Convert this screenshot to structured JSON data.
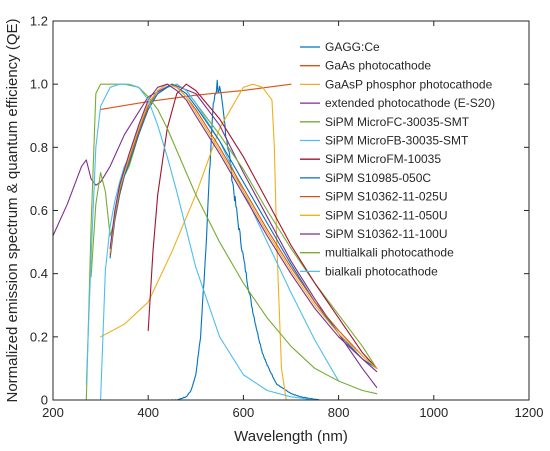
{
  "chart_data": {
    "type": "line",
    "title": "",
    "xlabel": "Wavelength (nm)",
    "ylabel": "Normalized emission spectrum & quantum efficiency (QE)",
    "xlim": [
      200,
      1200
    ],
    "ylim": [
      0,
      1.2
    ],
    "xticks": [
      "200",
      "400",
      "600",
      "800",
      "1000",
      "1200"
    ],
    "yticks": [
      "0",
      "0.2",
      "0.4",
      "0.6",
      "0.8",
      "1.0",
      "1.2"
    ],
    "grid": false,
    "legend_position": "top-right",
    "series": [
      {
        "name": "GAGG:Ce",
        "color": "#0072BD",
        "noisy": true,
        "x": [
          440,
          460,
          480,
          490,
          500,
          510,
          520,
          530,
          535,
          540,
          545,
          550,
          555,
          560,
          570,
          580,
          590,
          600,
          610,
          620,
          630,
          640,
          650,
          660,
          670,
          680,
          700,
          720,
          740,
          760
        ],
        "y": [
          0.0,
          0.0,
          0.01,
          0.03,
          0.08,
          0.2,
          0.45,
          0.75,
          0.9,
          0.97,
          1.0,
          0.98,
          0.93,
          0.88,
          0.78,
          0.66,
          0.55,
          0.45,
          0.36,
          0.28,
          0.21,
          0.15,
          0.11,
          0.08,
          0.05,
          0.04,
          0.02,
          0.01,
          0.005,
          0.0
        ]
      },
      {
        "name": "GaAs photocathode",
        "color": "#D95319",
        "x": [
          300,
          400,
          500,
          600,
          700
        ],
        "y": [
          0.92,
          0.945,
          0.965,
          0.98,
          1.0
        ]
      },
      {
        "name": "GaAsP phosphor photocathode",
        "color": "#EDB120",
        "x": [
          300,
          350,
          400,
          450,
          500,
          550,
          600,
          620,
          640,
          660,
          665,
          670,
          680,
          690
        ],
        "y": [
          0.2,
          0.24,
          0.31,
          0.47,
          0.65,
          0.86,
          0.99,
          1.0,
          0.99,
          0.95,
          0.8,
          0.5,
          0.1,
          0.0
        ]
      },
      {
        "name": "extended photocathode (E-S20)",
        "color": "#7E2F8E",
        "x": [
          200,
          230,
          260,
          270,
          280,
          290,
          300,
          320,
          350,
          400,
          450,
          500,
          550,
          600,
          650,
          700,
          750,
          800,
          850,
          880
        ],
        "y": [
          0.52,
          0.62,
          0.74,
          0.76,
          0.7,
          0.68,
          0.69,
          0.74,
          0.84,
          0.96,
          1.0,
          0.97,
          0.87,
          0.72,
          0.58,
          0.44,
          0.32,
          0.21,
          0.1,
          0.04
        ]
      },
      {
        "name": "SiPM MicroFC-30035-SMT",
        "color": "#77AC30",
        "x": [
          280,
          290,
          300,
          310,
          320,
          330,
          340,
          350,
          360,
          380,
          400,
          420,
          440,
          460,
          480,
          500,
          550,
          600,
          650,
          700,
          750,
          800,
          850,
          880
        ],
        "y": [
          0.39,
          0.62,
          0.72,
          0.66,
          0.52,
          0.57,
          0.65,
          0.71,
          0.74,
          0.84,
          0.93,
          0.97,
          0.99,
          1.0,
          0.98,
          0.94,
          0.84,
          0.73,
          0.6,
          0.48,
          0.37,
          0.27,
          0.17,
          0.1
        ]
      },
      {
        "name": "SiPM MicroFB-30035-SMT",
        "color": "#4DBEEE",
        "x": [
          300,
          310,
          320,
          330,
          340,
          350,
          360,
          380,
          400,
          420,
          440,
          460,
          480,
          500,
          550,
          600,
          650,
          700,
          750,
          800
        ],
        "y": [
          0.0,
          0.41,
          0.55,
          0.63,
          0.69,
          0.74,
          0.77,
          0.86,
          0.93,
          0.97,
          0.99,
          1.0,
          0.98,
          0.94,
          0.82,
          0.66,
          0.5,
          0.34,
          0.19,
          0.06
        ]
      },
      {
        "name": "SiPM MicroFM-10035",
        "color": "#A2142F",
        "x": [
          400,
          410,
          420,
          440,
          460,
          480,
          500,
          550,
          600,
          650,
          700,
          750,
          800,
          850,
          880
        ],
        "y": [
          0.22,
          0.47,
          0.65,
          0.86,
          0.97,
          1.0,
          0.98,
          0.89,
          0.77,
          0.63,
          0.49,
          0.37,
          0.26,
          0.15,
          0.1
        ]
      },
      {
        "name": "SiPM S10985-050C",
        "color": "#0072BD",
        "x": [
          320,
          330,
          340,
          350,
          360,
          380,
          400,
          420,
          440,
          450,
          460,
          480,
          500,
          550,
          600,
          650,
          700,
          750,
          800,
          850,
          880
        ],
        "y": [
          0.45,
          0.57,
          0.65,
          0.71,
          0.75,
          0.84,
          0.92,
          0.97,
          0.99,
          1.0,
          0.99,
          0.97,
          0.93,
          0.82,
          0.69,
          0.56,
          0.43,
          0.31,
          0.21,
          0.13,
          0.1
        ]
      },
      {
        "name": "SiPM S10362-11-025U",
        "color": "#D95319",
        "x": [
          320,
          330,
          340,
          350,
          360,
          380,
          400,
          420,
          440,
          460,
          480,
          500,
          550,
          600,
          650,
          700,
          750,
          800,
          850,
          880
        ],
        "y": [
          0.46,
          0.58,
          0.66,
          0.72,
          0.76,
          0.85,
          0.93,
          0.98,
          1.0,
          0.99,
          0.96,
          0.92,
          0.8,
          0.67,
          0.54,
          0.42,
          0.31,
          0.22,
          0.14,
          0.1
        ]
      },
      {
        "name": "SiPM S10362-11-050U",
        "color": "#EDB120",
        "x": [
          320,
          330,
          340,
          350,
          360,
          380,
          400,
          420,
          440,
          460,
          480,
          500,
          550,
          600,
          650,
          700,
          750,
          800,
          850,
          880
        ],
        "y": [
          0.47,
          0.59,
          0.67,
          0.72,
          0.77,
          0.86,
          0.94,
          0.98,
          1.0,
          0.99,
          0.96,
          0.91,
          0.79,
          0.66,
          0.53,
          0.41,
          0.3,
          0.21,
          0.14,
          0.1
        ]
      },
      {
        "name": "SiPM S10362-11-100U",
        "color": "#7E2F8E",
        "x": [
          320,
          330,
          340,
          350,
          360,
          380,
          400,
          420,
          440,
          460,
          480,
          500,
          550,
          600,
          650,
          700,
          750,
          800,
          850,
          880
        ],
        "y": [
          0.48,
          0.6,
          0.68,
          0.73,
          0.78,
          0.87,
          0.95,
          0.99,
          1.0,
          0.98,
          0.95,
          0.9,
          0.78,
          0.65,
          0.52,
          0.4,
          0.29,
          0.2,
          0.13,
          0.09
        ]
      },
      {
        "name": "multialkali photocathode",
        "color": "#77AC30",
        "x": [
          270,
          280,
          290,
          300,
          320,
          350,
          380,
          400,
          420,
          440,
          460,
          480,
          500,
          550,
          600,
          650,
          700,
          750,
          800,
          850,
          880
        ],
        "y": [
          0.0,
          0.55,
          0.97,
          1.0,
          1.0,
          1.0,
          0.99,
          0.96,
          0.92,
          0.86,
          0.79,
          0.72,
          0.65,
          0.5,
          0.37,
          0.26,
          0.17,
          0.1,
          0.06,
          0.03,
          0.02
        ]
      },
      {
        "name": "bialkali photocathode",
        "color": "#4DBEEE",
        "x": [
          270,
          280,
          290,
          300,
          320,
          340,
          360,
          380,
          400,
          420,
          440,
          460,
          480,
          500,
          550,
          600,
          650,
          700,
          750
        ],
        "y": [
          0.05,
          0.45,
          0.8,
          0.93,
          0.99,
          1.0,
          1.0,
          0.99,
          0.95,
          0.87,
          0.77,
          0.66,
          0.54,
          0.42,
          0.2,
          0.08,
          0.03,
          0.01,
          0.0
        ]
      }
    ]
  }
}
